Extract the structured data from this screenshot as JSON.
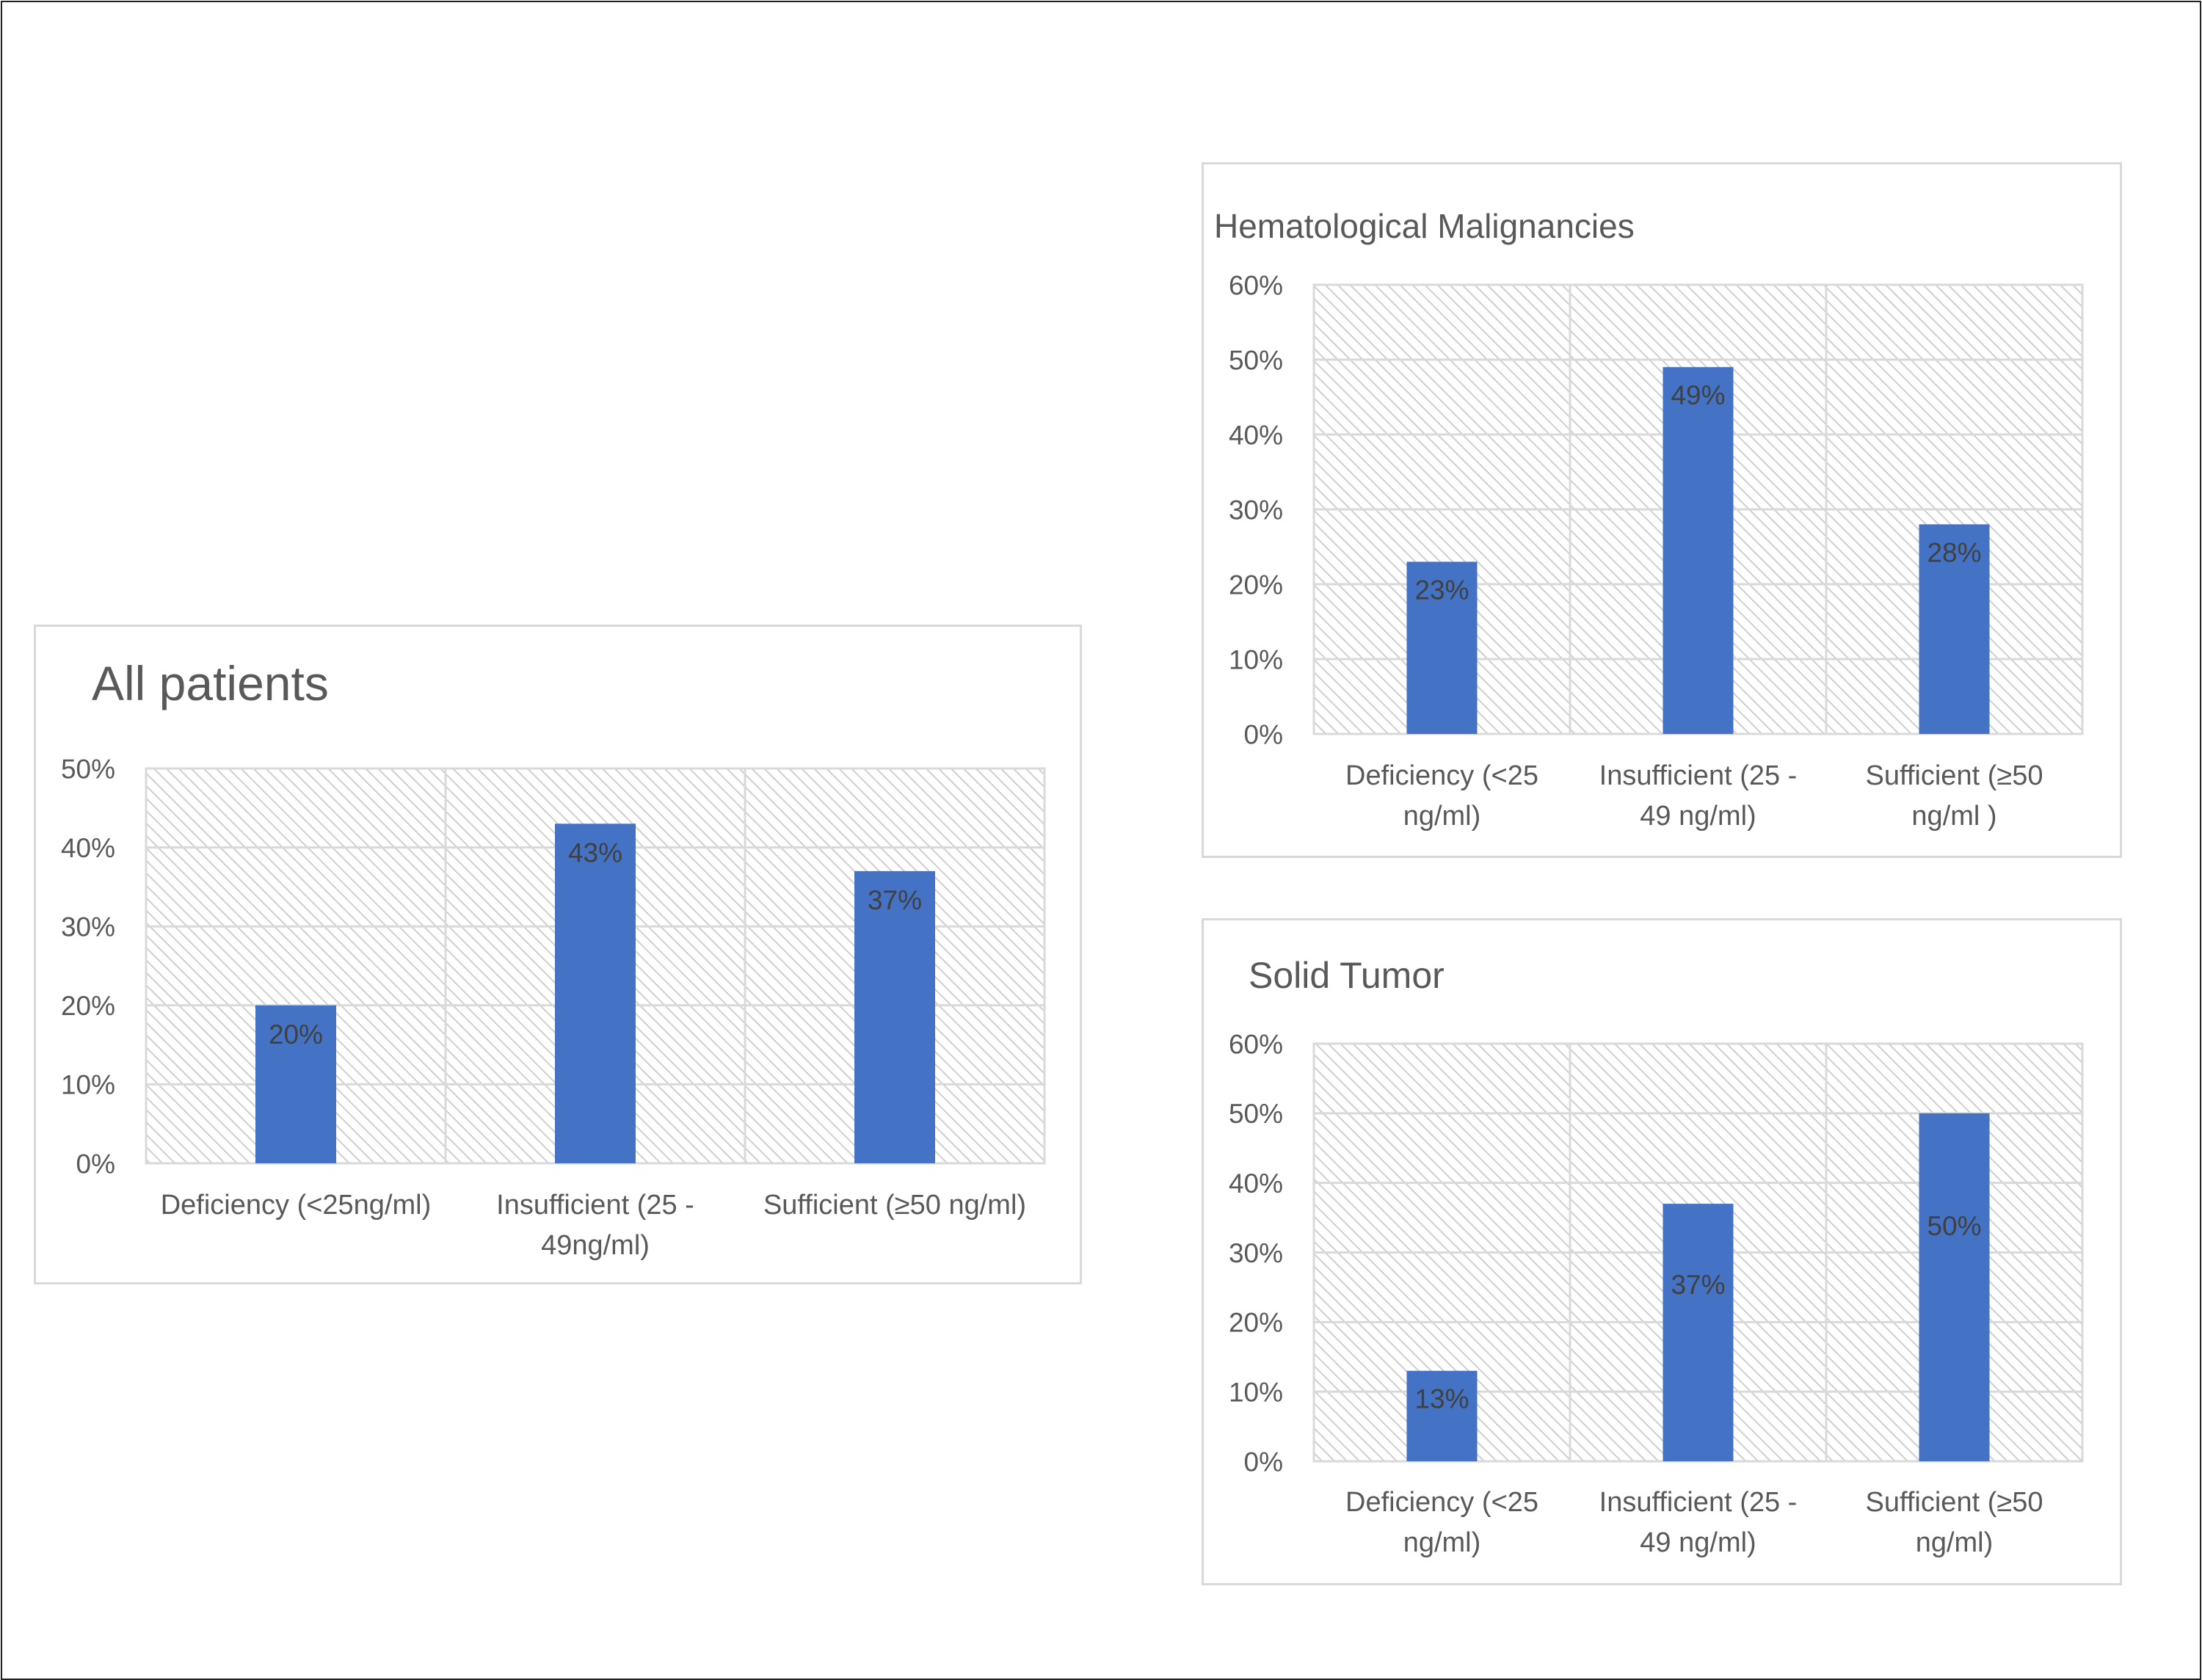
{
  "colors": {
    "bar": "#4472C4",
    "plot_bg": "#F2F2F2",
    "hatch": "#CFCFCF",
    "grid": "#D9D9D9",
    "text": "#595959",
    "data_label": "#404040"
  },
  "chart_data": [
    {
      "type": "bar",
      "title": "All patients",
      "categories": [
        "Deficiency (<25ng/ml)",
        "Insufficient (25 - 49ng/ml)",
        "Sufficient (≥50 ng/ml)"
      ],
      "category_lines": [
        [
          "Deficiency (<25ng/ml)"
        ],
        [
          "Insufficient (25 -",
          "49ng/ml)"
        ],
        [
          "Sufficient (≥50 ng/ml)"
        ]
      ],
      "values": [
        20,
        43,
        37
      ],
      "data_labels": [
        "20%",
        "43%",
        "37%"
      ],
      "yticks": [
        "0%",
        "10%",
        "20%",
        "30%",
        "40%",
        "50%"
      ],
      "ylim": [
        0,
        50
      ],
      "xlabel": "",
      "ylabel": "",
      "grid": true,
      "legend": "none"
    },
    {
      "type": "bar",
      "title": "Hematological Malignancies",
      "categories": [
        "Deficiency (<25 ng/ml)",
        "Insufficient (25 - 49 ng/ml)",
        "Sufficient (≥50 ng/ml )"
      ],
      "category_lines": [
        [
          "Deficiency (<25",
          "ng/ml)"
        ],
        [
          "Insufficient (25 -",
          "49 ng/ml)"
        ],
        [
          "Sufficient (≥50",
          "ng/ml )"
        ]
      ],
      "values": [
        23,
        49,
        28
      ],
      "data_labels": [
        "23%",
        "49%",
        "28%"
      ],
      "yticks": [
        "0%",
        "10%",
        "20%",
        "30%",
        "40%",
        "50%",
        "60%"
      ],
      "ylim": [
        0,
        60
      ],
      "xlabel": "",
      "ylabel": "",
      "grid": true,
      "legend": "none"
    },
    {
      "type": "bar",
      "title": "Solid Tumor",
      "categories": [
        "Deficiency (<25 ng/ml)",
        "Insufficient (25 - 49 ng/ml)",
        "Sufficient (≥50 ng/ml)"
      ],
      "category_lines": [
        [
          "Deficiency (<25",
          "ng/ml)"
        ],
        [
          "Insufficient (25 -",
          "49 ng/ml)"
        ],
        [
          "Sufficient (≥50",
          "ng/ml)"
        ]
      ],
      "values": [
        13,
        37,
        50
      ],
      "data_labels": [
        "13%",
        "37%",
        "50%"
      ],
      "yticks": [
        "0%",
        "10%",
        "20%",
        "30%",
        "40%",
        "50%",
        "60%"
      ],
      "ylim": [
        0,
        60
      ],
      "xlabel": "",
      "ylabel": "",
      "grid": true,
      "legend": "none"
    }
  ]
}
